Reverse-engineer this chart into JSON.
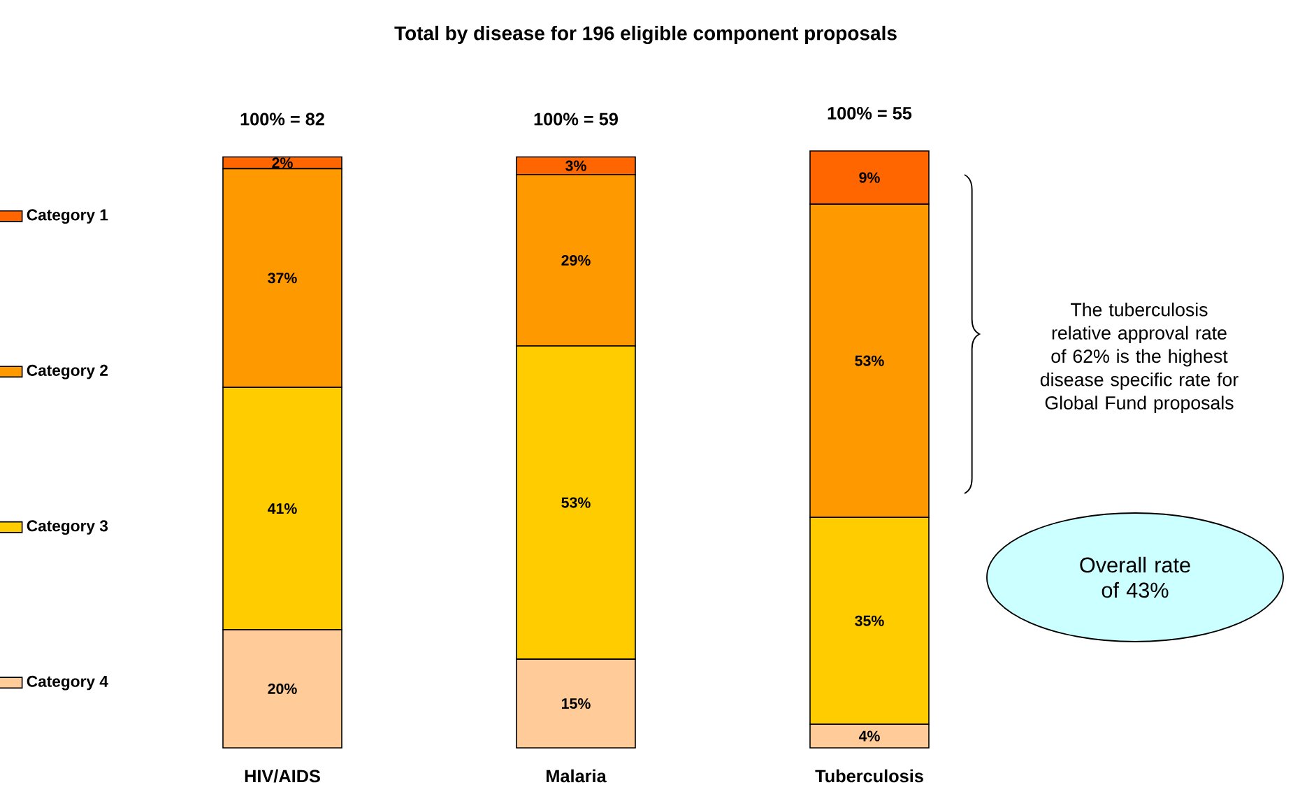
{
  "chart_data": {
    "type": "bar",
    "stacked": true,
    "title": "Total by disease for 196 eligible component proposals",
    "categories": [
      "HIV/AIDS",
      "Malaria",
      "Tuberculosis"
    ],
    "series": [
      {
        "name": "Category 4",
        "color": "#ffcc99",
        "values": [
          20,
          15,
          4
        ],
        "value_labels": [
          "20%",
          "15%",
          "4%"
        ]
      },
      {
        "name": "Category 3",
        "color": "#ffcc00",
        "values": [
          41,
          53,
          35
        ],
        "value_labels": [
          "41%",
          "53%",
          "35%"
        ]
      },
      {
        "name": "Category 2",
        "color": "#ff9900",
        "values": [
          37,
          29,
          53
        ],
        "value_labels": [
          "37%",
          "29%",
          "53%"
        ]
      },
      {
        "name": "Category 1",
        "color": "#ff6600",
        "values": [
          2,
          3,
          9
        ],
        "value_labels": [
          "2%",
          "3%",
          "9%"
        ]
      }
    ],
    "totals": [
      "100% = 82",
      "100% = 59",
      "100% = 55"
    ],
    "legend": "left",
    "annotations": [
      "The tuberculosis relative approval rate of 62% is the highest disease specific rate for Global Fund proposals",
      "Overall rate of 43%"
    ]
  }
}
